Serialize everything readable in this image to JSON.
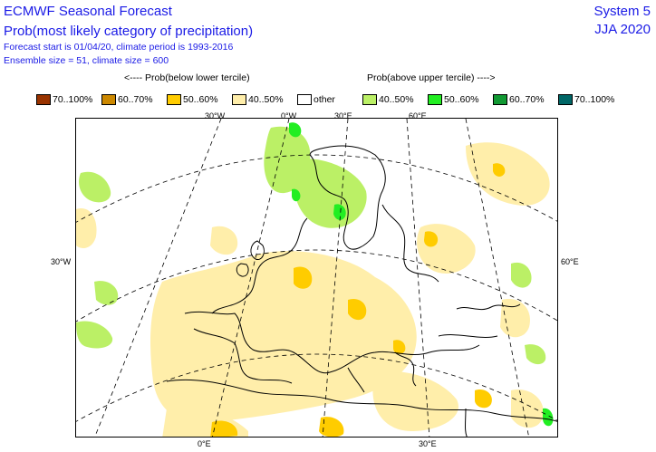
{
  "header": {
    "title": "ECMWF Seasonal Forecast",
    "subtitle": "Prob(most likely category of precipitation)",
    "info_line1": "Forecast start is 01/04/20, climate period is 1993-2016",
    "info_line2": "Ensemble size = 51, climate size = 600",
    "system": "System 5",
    "season": "JJA 2020"
  },
  "arrows": {
    "below": "<---- Prob(below lower tercile)",
    "above": "Prob(above upper tercile) ---->"
  },
  "legend": [
    {
      "label": "70..100%",
      "color": "#993300"
    },
    {
      "label": "60..70%",
      "color": "#cc8800"
    },
    {
      "label": "50..60%",
      "color": "#ffcc00"
    },
    {
      "label": "40..50%",
      "color": "#ffeeaa"
    },
    {
      "label": "other",
      "color": "#ffffff"
    },
    {
      "label": "40..50%",
      "color": "#bbf066"
    },
    {
      "label": "50..60%",
      "color": "#22ee22"
    },
    {
      "label": "60..70%",
      "color": "#119933"
    },
    {
      "label": "70..100%",
      "color": "#006666"
    }
  ],
  "coords": {
    "top": [
      "30°W",
      "0°W",
      "30°E",
      "60°E"
    ],
    "left": "30°W",
    "right": "60°E",
    "bottom": [
      "0°E",
      "30°E"
    ]
  }
}
